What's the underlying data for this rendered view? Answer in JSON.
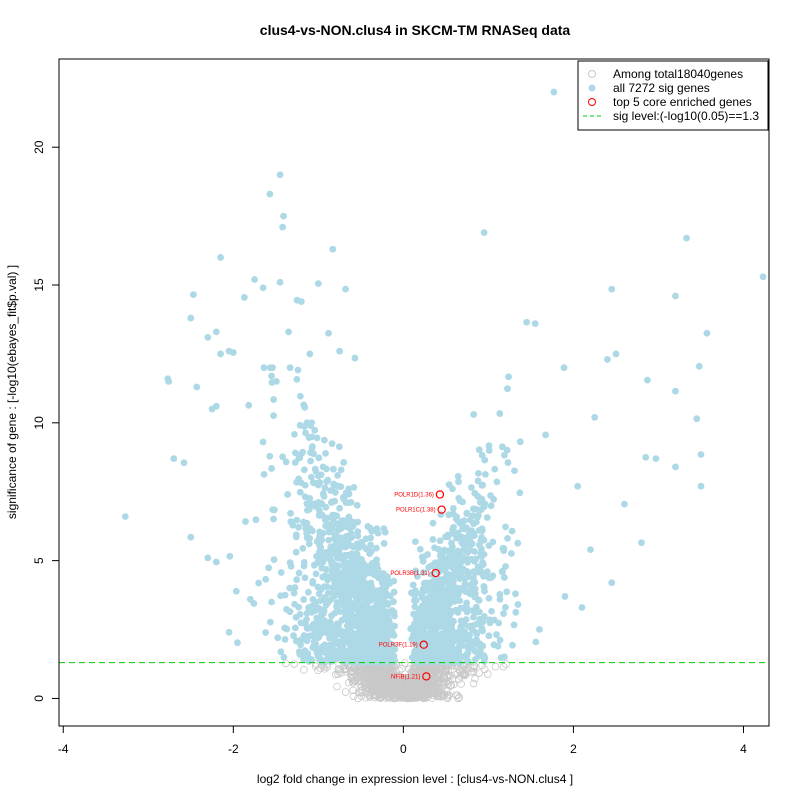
{
  "chart_data": {
    "type": "scatter",
    "title": "clus4-vs-NON.clus4 in SKCM-TM RNASeq data",
    "xlabel": "log2 fold change in expression level : [clus4-vs-NON.clus4 ]",
    "ylabel": "significance of gene : [-log10(ebayes_fit$p.val) ]",
    "xlim": [
      -4.05,
      4.3
    ],
    "ylim": [
      -1.0,
      23.2
    ],
    "xticks": [
      -4,
      -2,
      0,
      2,
      4
    ],
    "yticks": [
      0,
      5,
      10,
      15,
      20
    ],
    "xtick_labels": [
      "-4",
      "-2",
      "0",
      "2",
      "4"
    ],
    "ytick_labels": [
      "0",
      "5",
      "10",
      "15",
      "20"
    ],
    "sig_threshold": 1.3,
    "legend": {
      "placement": "top-right",
      "entries": [
        "Among total18040genes",
        "all 7272 sig genes",
        "top 5 core enriched genes",
        "sig level:(-log10(0.05)==1.3"
      ]
    },
    "colors": {
      "all_genes": "#c8c8c8",
      "sig_genes": "#add8e6",
      "top_genes": "#ff0000",
      "threshold_line": "#00cc00"
    },
    "top_genes": [
      {
        "label": "POLR1D(1.36)",
        "x": 0.43,
        "y": 7.4
      },
      {
        "label": "POLR1C(1.38)",
        "x": 0.45,
        "y": 6.85
      },
      {
        "label": "POLR3B(1.31)",
        "x": 0.38,
        "y": 4.55
      },
      {
        "label": "POLR3F(1.19)",
        "x": 0.24,
        "y": 1.95
      },
      {
        "label": "NFIB(1.21)",
        "x": 0.27,
        "y": 0.8
      }
    ],
    "highlight_sig_points": [
      [
        -3.27,
        6.6
      ],
      [
        1.77,
        22.0
      ],
      [
        4.23,
        15.3
      ],
      [
        -1.45,
        19.0
      ],
      [
        -1.57,
        18.3
      ],
      [
        -1.41,
        17.5
      ],
      [
        -1.42,
        17.1
      ],
      [
        0.95,
        16.9
      ],
      [
        3.33,
        16.7
      ],
      [
        -2.15,
        16.0
      ],
      [
        -0.83,
        16.3
      ],
      [
        -1.75,
        15.2
      ],
      [
        -1.45,
        15.1
      ],
      [
        -1.65,
        14.9
      ],
      [
        -1.0,
        15.05
      ],
      [
        -0.68,
        14.85
      ],
      [
        -2.47,
        14.65
      ],
      [
        -1.87,
        14.55
      ],
      [
        -1.25,
        14.45
      ],
      [
        -1.2,
        14.4
      ],
      [
        2.45,
        14.85
      ],
      [
        3.2,
        14.6
      ],
      [
        3.57,
        13.25
      ],
      [
        -2.5,
        13.8
      ],
      [
        -2.3,
        13.1
      ],
      [
        -2.2,
        13.3
      ],
      [
        -1.35,
        13.3
      ],
      [
        -0.88,
        13.25
      ],
      [
        1.55,
        13.6
      ],
      [
        1.45,
        13.65
      ],
      [
        -2.05,
        12.6
      ],
      [
        -2.15,
        12.5
      ],
      [
        -2.0,
        12.55
      ],
      [
        -1.1,
        12.5
      ],
      [
        -0.75,
        12.6
      ],
      [
        -0.57,
        12.35
      ],
      [
        2.4,
        12.3
      ],
      [
        2.5,
        12.5
      ],
      [
        3.48,
        12.05
      ],
      [
        -2.77,
        11.6
      ],
      [
        -2.76,
        11.5
      ],
      [
        -2.43,
        11.3
      ],
      [
        -1.55,
        11.7
      ],
      [
        2.87,
        11.55
      ],
      [
        3.2,
        11.15
      ],
      [
        -2.2,
        10.6
      ],
      [
        -2.25,
        10.5
      ],
      [
        3.45,
        10.15
      ],
      [
        2.25,
        10.2
      ],
      [
        -2.7,
        8.7
      ],
      [
        -2.58,
        8.55
      ],
      [
        3.5,
        8.85
      ],
      [
        3.2,
        8.4
      ],
      [
        2.97,
        8.7
      ],
      [
        2.85,
        8.75
      ],
      [
        3.5,
        7.7
      ],
      [
        2.6,
        7.05
      ],
      [
        2.05,
        7.7
      ],
      [
        -2.5,
        5.85
      ],
      [
        -2.3,
        5.1
      ],
      [
        -2.2,
        4.95
      ],
      [
        2.8,
        5.65
      ],
      [
        2.2,
        5.4
      ],
      [
        2.45,
        4.2
      ],
      [
        -1.55,
        3.5
      ],
      [
        -1.8,
        3.6
      ],
      [
        -2.05,
        2.4
      ],
      [
        1.9,
        3.7
      ],
      [
        2.1,
        3.3
      ],
      [
        1.6,
        2.5
      ]
    ]
  }
}
